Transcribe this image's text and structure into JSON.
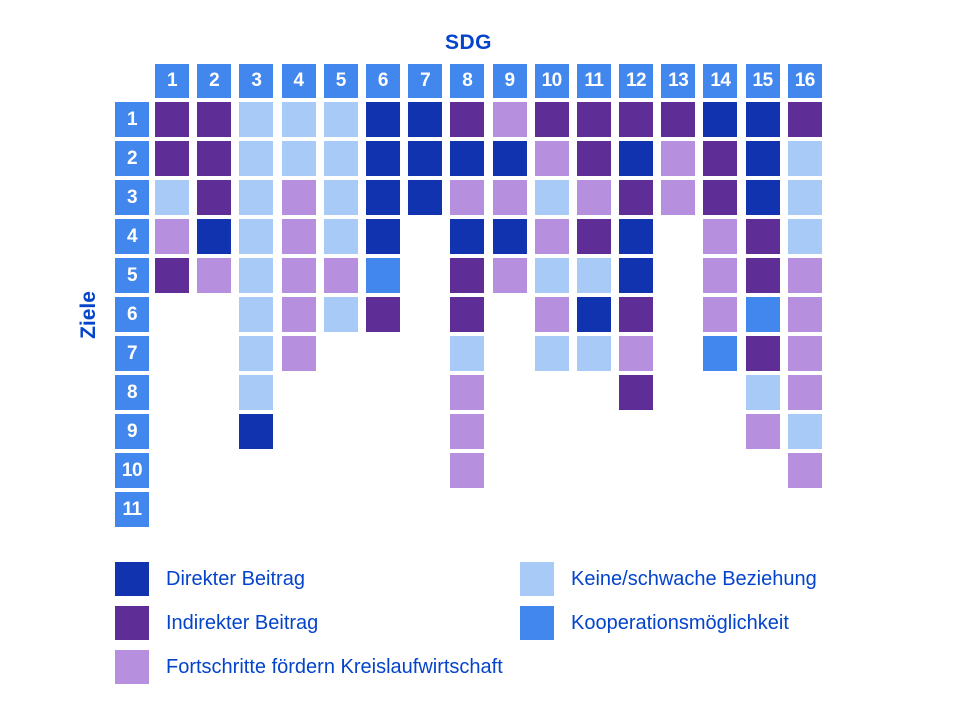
{
  "page": {
    "background": "#ffffff"
  },
  "chart_data": {
    "type": "heatmap",
    "title": "SDG",
    "ylabel": "Ziele",
    "columns": [
      "1",
      "2",
      "3",
      "4",
      "5",
      "6",
      "7",
      "8",
      "9",
      "10",
      "11",
      "12",
      "13",
      "14",
      "15",
      "16"
    ],
    "rows": [
      "1",
      "2",
      "3",
      "4",
      "5",
      "6",
      "7",
      "8",
      "9",
      "10",
      "11"
    ],
    "header_color": "#4287ee",
    "text_color": "#0444cc",
    "legend_codes": {
      "D": {
        "label": "Direkter Beitrag",
        "color": "#1133b0"
      },
      "I": {
        "label": "Indirekter Beitrag",
        "color": "#5e2d96"
      },
      "F": {
        "label": "Fortschritte fördern Kreislaufwirtschaft",
        "color": "#b690de"
      },
      "K": {
        "label": "Keine/schwache Beziehung",
        "color": "#a7caf6"
      },
      "C": {
        "label": "Kooperationsmöglichkeit",
        "color": "#4287ee"
      }
    },
    "matrix": [
      [
        "I",
        "I",
        "K",
        "K",
        "K",
        "D",
        "D",
        "I",
        "F",
        "I",
        "I",
        "I",
        "I",
        "D",
        "D",
        "I"
      ],
      [
        "I",
        "I",
        "K",
        "K",
        "K",
        "D",
        "D",
        "D",
        "D",
        "F",
        "I",
        "D",
        "F",
        "I",
        "D",
        "K"
      ],
      [
        "K",
        "I",
        "K",
        "F",
        "K",
        "D",
        "D",
        "F",
        "F",
        "K",
        "F",
        "I",
        "F",
        "I",
        "D",
        "K"
      ],
      [
        "F",
        "D",
        "K",
        "F",
        "K",
        "D",
        ".",
        "D",
        "D",
        "F",
        "I",
        "D",
        ".",
        "F",
        "I",
        "K"
      ],
      [
        "I",
        "F",
        "K",
        "F",
        "F",
        "C",
        ".",
        "I",
        "F",
        "K",
        "K",
        "D",
        ".",
        "F",
        "I",
        "F"
      ],
      [
        ".",
        ".",
        "K",
        "F",
        "K",
        "I",
        ".",
        "I",
        ".",
        "F",
        "D",
        "I",
        ".",
        "F",
        "C",
        "F"
      ],
      [
        ".",
        ".",
        "K",
        "F",
        ".",
        ".",
        ".",
        "K",
        ".",
        "K",
        "K",
        "F",
        ".",
        "C",
        "I",
        "F"
      ],
      [
        ".",
        ".",
        "K",
        ".",
        ".",
        ".",
        ".",
        "F",
        ".",
        ".",
        ".",
        "I",
        ".",
        ".",
        "K",
        "F"
      ],
      [
        ".",
        ".",
        "D",
        ".",
        ".",
        ".",
        ".",
        "F",
        ".",
        ".",
        ".",
        ".",
        ".",
        ".",
        "F",
        "K"
      ],
      [
        ".",
        ".",
        ".",
        ".",
        ".",
        ".",
        ".",
        "F",
        ".",
        ".",
        ".",
        ".",
        ".",
        ".",
        ".",
        "F"
      ],
      [
        ".",
        ".",
        ".",
        ".",
        ".",
        ".",
        ".",
        ".",
        ".",
        ".",
        ".",
        ".",
        ".",
        ".",
        ".",
        "."
      ]
    ]
  },
  "legend": {
    "left": [
      "D",
      "I",
      "F"
    ],
    "right": [
      "K",
      "C"
    ]
  }
}
